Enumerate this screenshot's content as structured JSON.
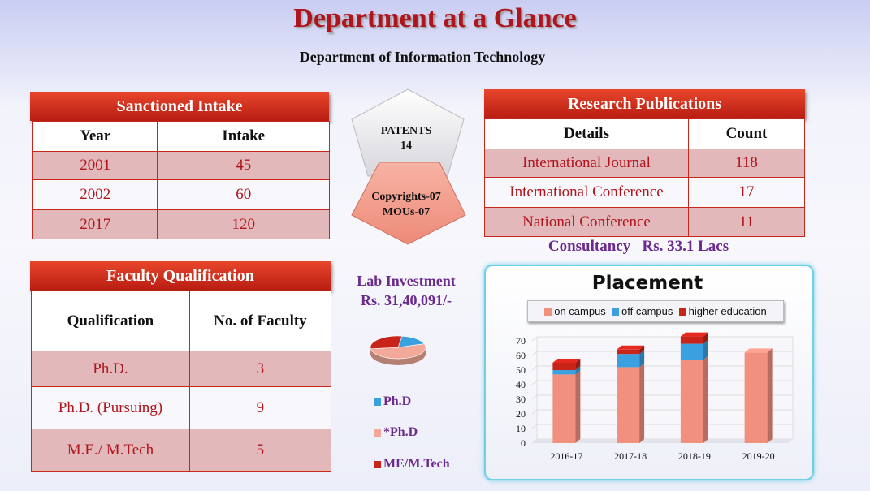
{
  "header": {
    "title": "Department at a Glance",
    "subtitle": "Department of Information Technology"
  },
  "sanctioned_intake": {
    "title": "Sanctioned Intake",
    "headers": [
      "Year",
      "Intake"
    ],
    "rows": [
      [
        "2001",
        "45"
      ],
      [
        "2002",
        "60"
      ],
      [
        "2017",
        "120"
      ]
    ]
  },
  "faculty_qualification": {
    "title": "Faculty Qualification",
    "headers": [
      "Qualification",
      "No. of Faculty"
    ],
    "rows": [
      [
        "Ph.D.",
        "3"
      ],
      [
        "Ph.D. (Pursuing)",
        "9"
      ],
      [
        "M.E./ M.Tech",
        "5"
      ]
    ]
  },
  "patents": {
    "label": "PATENTS",
    "value": "14",
    "copyrights": "Copyrights-07",
    "mous": "MOUs-07"
  },
  "research_publications": {
    "title": "Research Publications",
    "headers": [
      "Details",
      "Count"
    ],
    "rows": [
      [
        "International Journal",
        "118"
      ],
      [
        "International Conference",
        "17"
      ],
      [
        "National Conference",
        "11"
      ]
    ]
  },
  "consultancy": "Consultancy   Rs. 33.1 Lacs",
  "lab_investment": {
    "label": "Lab Investment",
    "value": "Rs. 31,40,091/-"
  },
  "colors": {
    "on_campus": "#f29080",
    "off_campus": "#3aa0e0",
    "higher_education": "#c8241a",
    "accent_red": "#b0141c",
    "accent_purple": "#6a2a8e"
  },
  "chart_data": [
    {
      "type": "pie",
      "labels": [
        "Ph.D",
        "*Ph.D",
        "ME/M.Tech"
      ],
      "values": [
        3,
        9,
        5
      ],
      "colors": [
        "#3aa0e0",
        "#f3a99a",
        "#c8241a"
      ]
    },
    {
      "type": "bar",
      "stacked": true,
      "title": "Placement",
      "categories": [
        "2016-17",
        "2017-18",
        "2018-19",
        "2019-20"
      ],
      "series": [
        {
          "name": "on campus",
          "values": [
            47,
            52,
            57,
            62
          ],
          "color": "#f29080"
        },
        {
          "name": "off campus",
          "values": [
            3,
            9,
            11,
            0
          ],
          "color": "#3aa0e0"
        },
        {
          "name": "higher education",
          "values": [
            5,
            3,
            5,
            0
          ],
          "color": "#c8241a"
        }
      ],
      "ylim": [
        0,
        70
      ],
      "yticks": [
        0,
        10,
        20,
        30,
        40,
        50,
        60,
        70
      ],
      "legend": "top",
      "grid": true
    }
  ]
}
